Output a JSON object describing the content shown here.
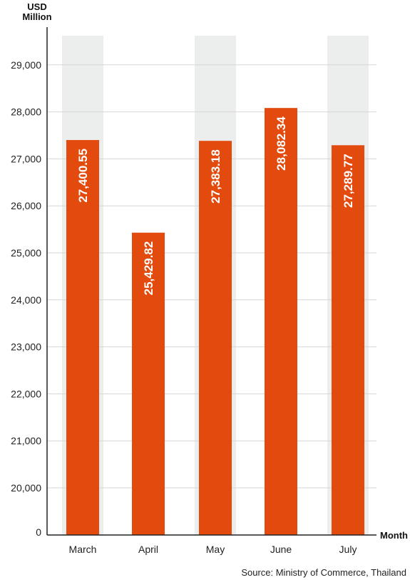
{
  "chart_data": {
    "type": "bar",
    "ylabel_line1": "USD",
    "ylabel_line2": "Million",
    "xlabel": "Month",
    "categories": [
      "March",
      "April",
      "May",
      "June",
      "July"
    ],
    "values": [
      27400.55,
      25429.82,
      27383.18,
      28082.34,
      27289.77
    ],
    "value_labels": [
      "27,400.55",
      "25,429.82",
      "27,383.18",
      "28,082.34",
      "27,289.77"
    ],
    "y_ticks": [
      0,
      20000,
      21000,
      22000,
      23000,
      24000,
      25000,
      26000,
      27000,
      28000,
      29000
    ],
    "y_tick_labels": [
      "0",
      "20,000",
      "21,000",
      "22,000",
      "23,000",
      "24,000",
      "25,000",
      "26,000",
      "27,000",
      "28,000",
      "29,000"
    ],
    "y_axis_break": true,
    "ylim": [
      19000,
      29500
    ],
    "grid": true,
    "highlight_columns": [
      "March",
      "May",
      "July"
    ],
    "bar_color": "#e34a0e",
    "highlight_color": "#ebeeec",
    "grid_color": "#d6d6d6",
    "source": "Source: Ministry of Commerce, Thailand"
  }
}
